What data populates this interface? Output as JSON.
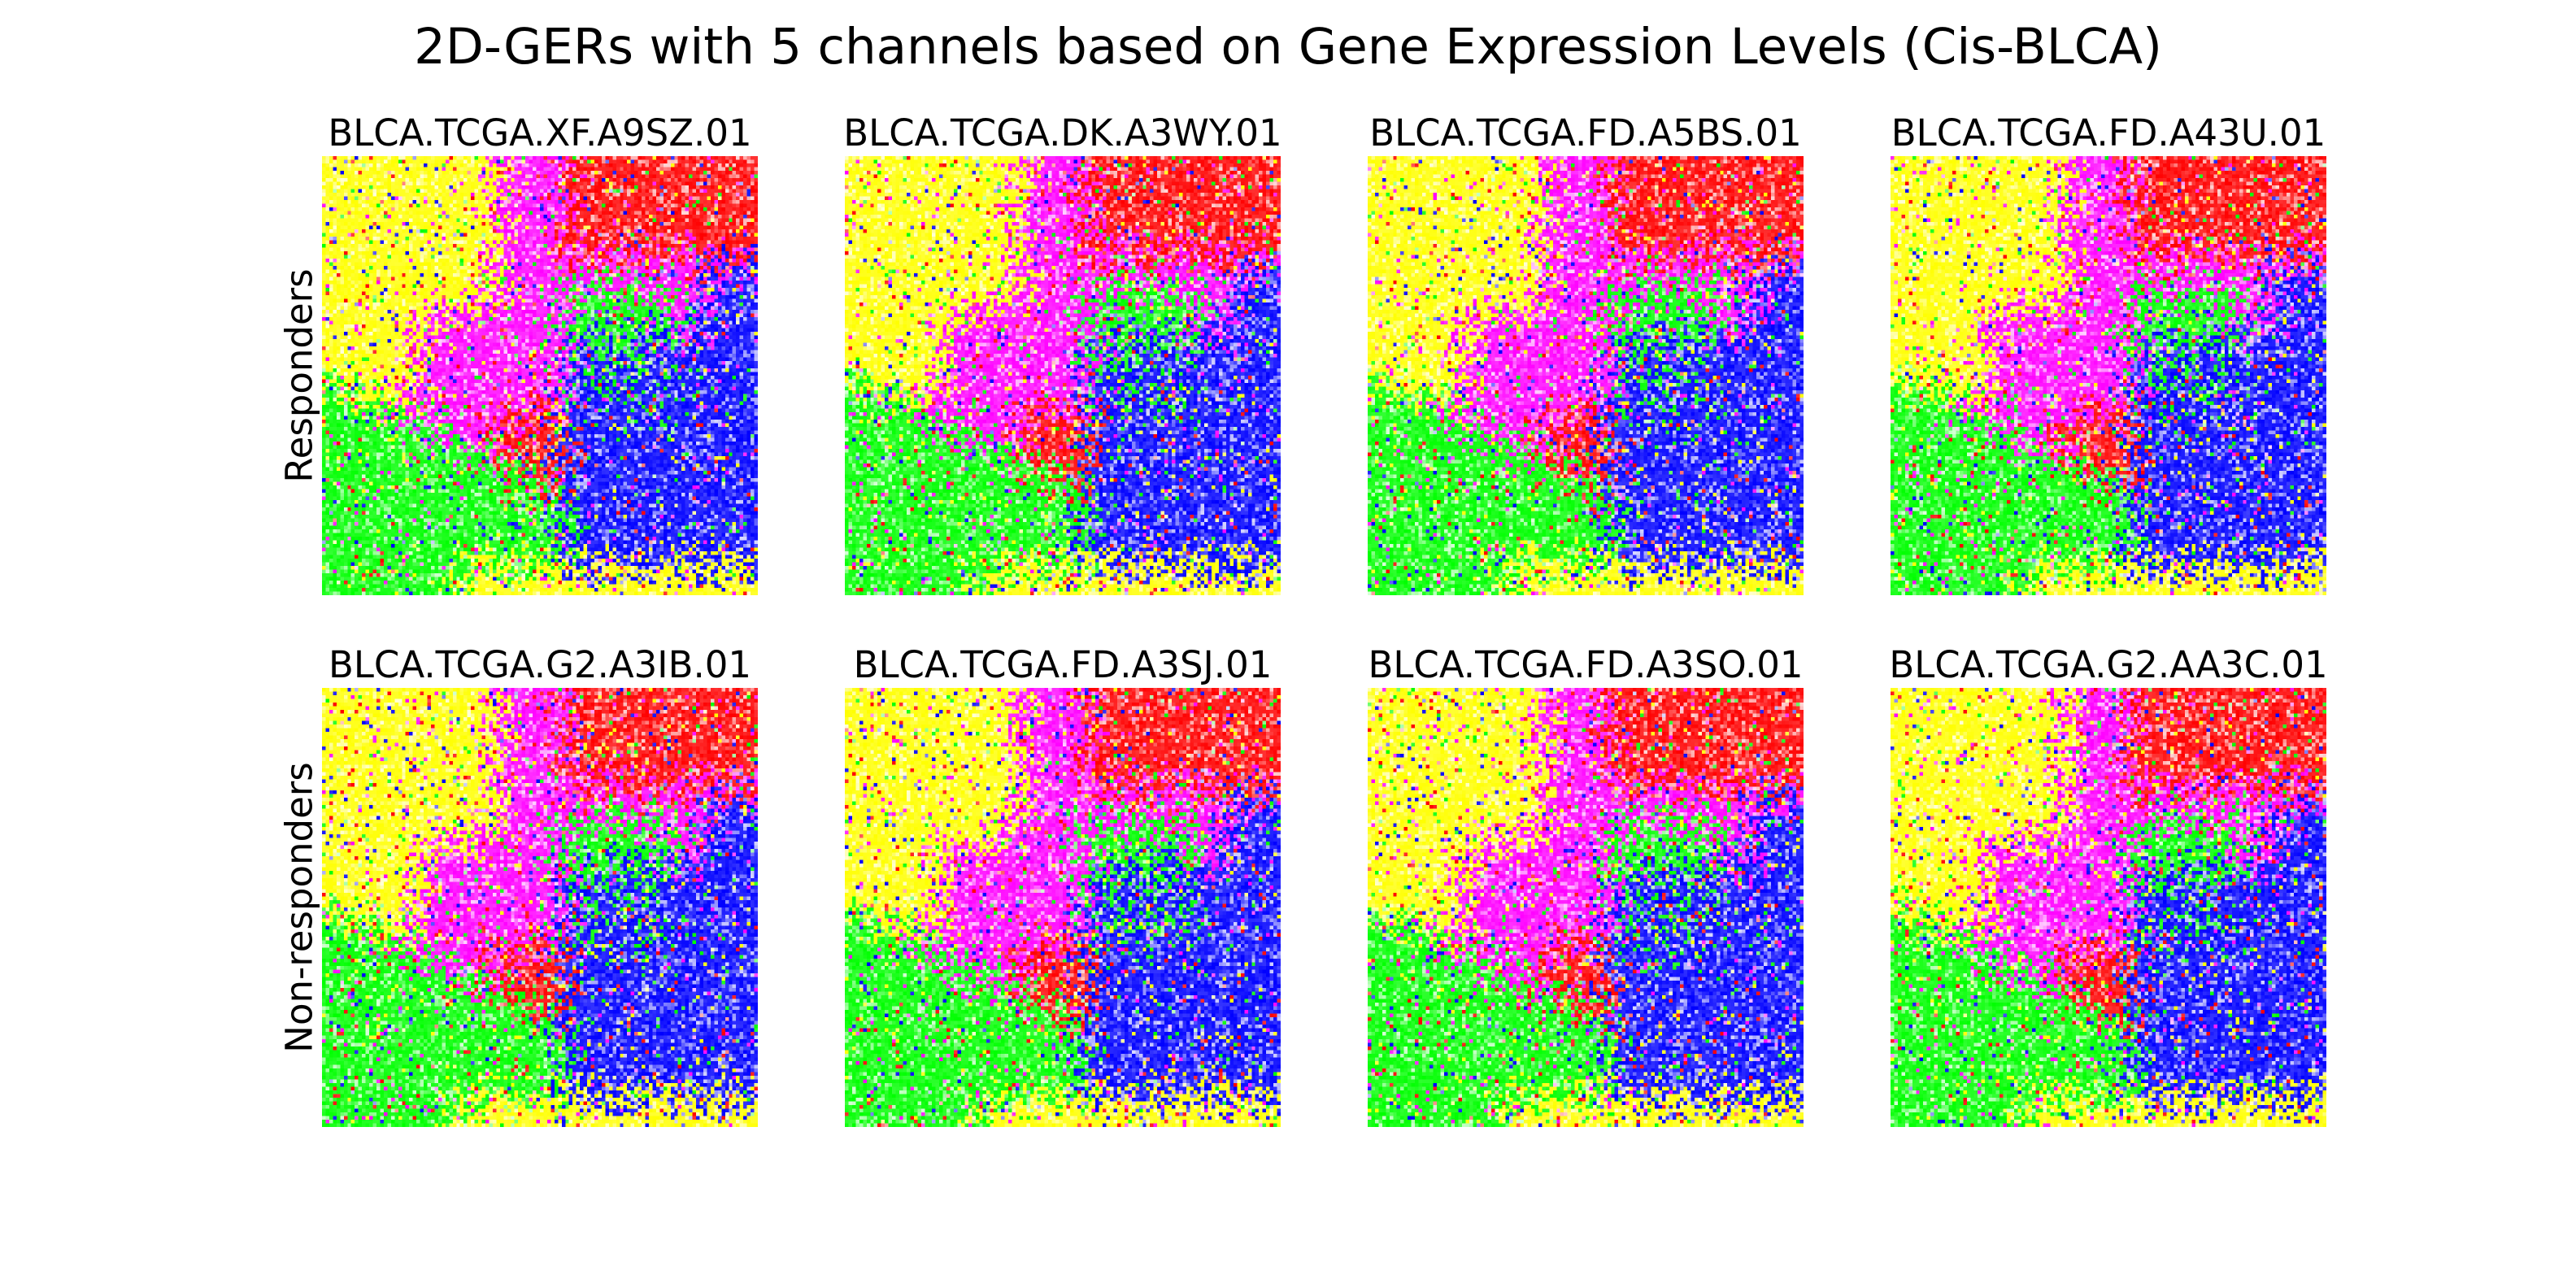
{
  "chart_data": {
    "type": "heatmap",
    "title": "2D-GERs with 5 channels based on Gene Expression Levels (Cis-BLCA)",
    "grid": false,
    "axes_visible": false,
    "channel_colors": [
      "#ff0000",
      "#00ff00",
      "#0000ff",
      "#ffff00",
      "#ff00ff"
    ],
    "rows": [
      {
        "label": "Responders",
        "samples": [
          "BLCA.TCGA.XF.A9SZ.01",
          "BLCA.TCGA.DK.A3WY.01",
          "BLCA.TCGA.FD.A5BS.01",
          "BLCA.TCGA.FD.A43U.01"
        ]
      },
      {
        "label": "Non-responders",
        "samples": [
          "BLCA.TCGA.G2.A3IB.01",
          "BLCA.TCGA.FD.A3SJ.01",
          "BLCA.TCGA.FD.A3SO.01",
          "BLCA.TCGA.G2.AA3C.01"
        ]
      }
    ]
  }
}
